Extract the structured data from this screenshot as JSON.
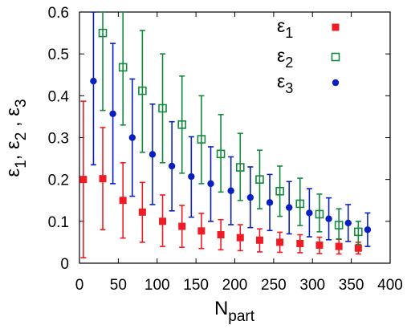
{
  "chart_data": {
    "type": "scatter",
    "title": "",
    "xlabel": {
      "base": "N",
      "sub": "part"
    },
    "ylabel": "ε1, ε2 , ε3",
    "ylabel_parts": [
      {
        "base": "ε",
        "sub": "1",
        "after": ", "
      },
      {
        "base": "ε",
        "sub": "2",
        "after": " ,  "
      },
      {
        "base": "ε",
        "sub": "3",
        "after": ""
      }
    ],
    "xlim": [
      0,
      400
    ],
    "ylim": [
      0,
      0.6
    ],
    "x_ticks": [
      "0",
      "50",
      "100",
      "150",
      "200",
      "250",
      "300",
      "350",
      "400"
    ],
    "y_ticks": [
      "0",
      "0.1",
      "0.2",
      "0.3",
      "0.4",
      "0.5",
      "0.6"
    ],
    "legend_position": "top-right",
    "grid": false,
    "series": [
      {
        "name": "ε1",
        "legend": {
          "base": "ε",
          "sub": "1"
        },
        "color": "#ee1c24",
        "marker": "filled-square",
        "points": [
          {
            "x": 5,
            "y": 0.2,
            "lo": 0.013,
            "hi": 0.387
          },
          {
            "x": 30,
            "y": 0.202,
            "lo": 0.08,
            "hi": 0.324
          },
          {
            "x": 56,
            "y": 0.15,
            "lo": 0.06,
            "hi": 0.24
          },
          {
            "x": 81,
            "y": 0.122,
            "lo": 0.05,
            "hi": 0.193
          },
          {
            "x": 107,
            "y": 0.1,
            "lo": 0.04,
            "hi": 0.163
          },
          {
            "x": 132,
            "y": 0.088,
            "lo": 0.038,
            "hi": 0.138
          },
          {
            "x": 157,
            "y": 0.077,
            "lo": 0.035,
            "hi": 0.119
          },
          {
            "x": 182,
            "y": 0.068,
            "lo": 0.032,
            "hi": 0.104
          },
          {
            "x": 207,
            "y": 0.061,
            "lo": 0.03,
            "hi": 0.092
          },
          {
            "x": 232,
            "y": 0.055,
            "lo": 0.027,
            "hi": 0.082
          },
          {
            "x": 258,
            "y": 0.05,
            "lo": 0.026,
            "hi": 0.074
          },
          {
            "x": 284,
            "y": 0.047,
            "lo": 0.025,
            "hi": 0.068
          },
          {
            "x": 309,
            "y": 0.043,
            "lo": 0.023,
            "hi": 0.062
          },
          {
            "x": 334,
            "y": 0.04,
            "lo": 0.022,
            "hi": 0.057
          },
          {
            "x": 359,
            "y": 0.036,
            "lo": 0.022,
            "hi": 0.05
          }
        ]
      },
      {
        "name": "ε2",
        "legend": {
          "base": "ε",
          "sub": "2"
        },
        "color": "#128a3e",
        "marker": "open-square",
        "points": [
          {
            "x": 30,
            "y": 0.55,
            "lo": 0.365,
            "hi": 0.6
          },
          {
            "x": 56,
            "y": 0.468,
            "lo": 0.33,
            "hi": 0.6
          },
          {
            "x": 81,
            "y": 0.412,
            "lo": 0.265,
            "hi": 0.556
          },
          {
            "x": 107,
            "y": 0.37,
            "lo": 0.24,
            "hi": 0.5
          },
          {
            "x": 132,
            "y": 0.331,
            "lo": 0.215,
            "hi": 0.447
          },
          {
            "x": 157,
            "y": 0.296,
            "lo": 0.19,
            "hi": 0.4
          },
          {
            "x": 182,
            "y": 0.261,
            "lo": 0.17,
            "hi": 0.355
          },
          {
            "x": 207,
            "y": 0.229,
            "lo": 0.15,
            "hi": 0.31
          },
          {
            "x": 232,
            "y": 0.2,
            "lo": 0.13,
            "hi": 0.27
          },
          {
            "x": 258,
            "y": 0.172,
            "lo": 0.112,
            "hi": 0.232
          },
          {
            "x": 284,
            "y": 0.142,
            "lo": 0.09,
            "hi": 0.203
          },
          {
            "x": 309,
            "y": 0.117,
            "lo": 0.075,
            "hi": 0.165
          },
          {
            "x": 334,
            "y": 0.091,
            "lo": 0.058,
            "hi": 0.13
          },
          {
            "x": 359,
            "y": 0.075,
            "lo": 0.045,
            "hi": 0.1
          }
        ]
      },
      {
        "name": "ε3",
        "legend": {
          "base": "ε",
          "sub": "3"
        },
        "color": "#0a1fbf",
        "marker": "filled-circle",
        "points": [
          {
            "x": 18,
            "y": 0.435,
            "lo": 0.235,
            "hi": 0.6
          },
          {
            "x": 43,
            "y": 0.357,
            "lo": 0.19,
            "hi": 0.525
          },
          {
            "x": 68,
            "y": 0.3,
            "lo": 0.16,
            "hi": 0.44
          },
          {
            "x": 94,
            "y": 0.26,
            "lo": 0.14,
            "hi": 0.38
          },
          {
            "x": 119,
            "y": 0.232,
            "lo": 0.125,
            "hi": 0.338
          },
          {
            "x": 144,
            "y": 0.207,
            "lo": 0.11,
            "hi": 0.302
          },
          {
            "x": 169,
            "y": 0.19,
            "lo": 0.1,
            "hi": 0.278
          },
          {
            "x": 195,
            "y": 0.173,
            "lo": 0.092,
            "hi": 0.254
          },
          {
            "x": 220,
            "y": 0.157,
            "lo": 0.085,
            "hi": 0.23
          },
          {
            "x": 245,
            "y": 0.145,
            "lo": 0.078,
            "hi": 0.212
          },
          {
            "x": 270,
            "y": 0.133,
            "lo": 0.07,
            "hi": 0.195
          },
          {
            "x": 296,
            "y": 0.12,
            "lo": 0.063,
            "hi": 0.178
          },
          {
            "x": 321,
            "y": 0.106,
            "lo": 0.056,
            "hi": 0.156
          },
          {
            "x": 346,
            "y": 0.096,
            "lo": 0.052,
            "hi": 0.14
          },
          {
            "x": 371,
            "y": 0.08,
            "lo": 0.04,
            "hi": 0.12
          }
        ]
      }
    ]
  }
}
